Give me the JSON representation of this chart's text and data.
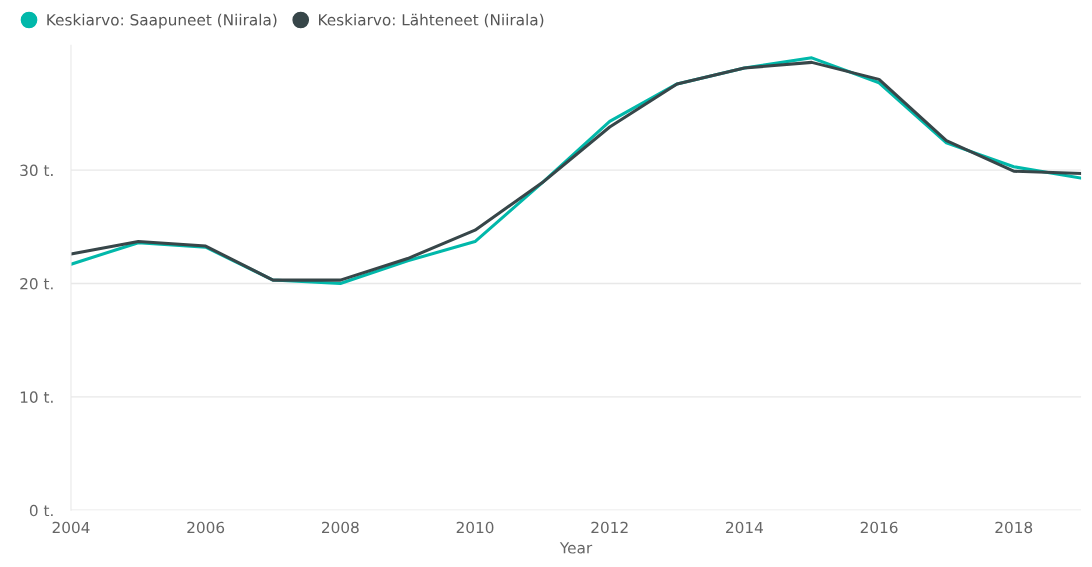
{
  "chart_data": {
    "type": "line",
    "xlabel": "Year",
    "x": [
      2004,
      2005,
      2006,
      2007,
      2008,
      2009,
      2010,
      2011,
      2012,
      2013,
      2014,
      2015,
      2016,
      2017,
      2018,
      2019
    ],
    "series": [
      {
        "name": "Keskiarvo: Saapuneet (Niirala)",
        "color": "#01b8aa",
        "values": [
          21.7,
          23.6,
          23.2,
          20.3,
          20.0,
          22.0,
          23.7,
          28.9,
          34.3,
          37.6,
          39.0,
          39.9,
          37.7,
          32.4,
          30.3,
          29.3
        ]
      },
      {
        "name": "Keskiarvo: Lähteneet (Niirala)",
        "color": "#374649",
        "values": [
          22.6,
          23.7,
          23.3,
          20.3,
          20.3,
          22.2,
          24.7,
          28.9,
          33.8,
          37.6,
          39.0,
          39.5,
          38.0,
          32.6,
          29.9,
          29.7
        ]
      }
    ],
    "xlim": [
      2004,
      2019
    ],
    "xticks": [
      2004,
      2006,
      2008,
      2010,
      2012,
      2014,
      2016,
      2018
    ],
    "ylim": [
      0,
      41
    ],
    "yticks": [
      {
        "value": 0,
        "label": "0 t."
      },
      {
        "value": 10,
        "label": "10 t."
      },
      {
        "value": 20,
        "label": "20 t."
      },
      {
        "value": 30,
        "label": "30 t."
      }
    ],
    "grid": "y",
    "legend": "top left",
    "marker": "none",
    "line_style": "solid"
  }
}
